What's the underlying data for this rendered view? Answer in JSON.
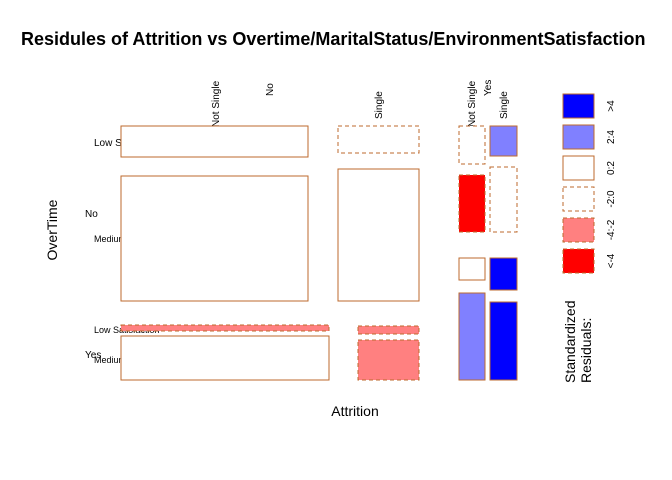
{
  "chart_data": {
    "type": "mosaic",
    "title": "Residules of Attrition vs Overtime/MaritalStatus/EnvironmentSatisfaction",
    "xlabel": "Attrition",
    "ylabel": "OverTime",
    "column_labels": {
      "attrition": [
        "No",
        "Yes"
      ],
      "marital_status": [
        "Not Single",
        "Single",
        "Not Single",
        "Single"
      ]
    },
    "row_labels": {
      "overtime": [
        "No",
        "Yes"
      ],
      "environment_satisfaction": [
        "Low Satisfaction",
        "Medium or High Satisfaction",
        "Low Satisfaction",
        "Medium or High Satisfaction"
      ]
    },
    "legend": {
      "title": "Standardized Residuals:",
      "entries": [
        {
          "label": ">4",
          "fill": "#0000ff",
          "dashed": false
        },
        {
          "label": "2:4",
          "fill": "#8080ff",
          "dashed": false
        },
        {
          "label": "0:2",
          "fill": "#ffffff",
          "dashed": false
        },
        {
          "label": "-2:0",
          "fill": "#ffffff",
          "dashed": true
        },
        {
          "label": "-4:-2",
          "fill": "#ff8080",
          "dashed": true
        },
        {
          "label": "<-4",
          "fill": "#ff0000",
          "dashed": true
        }
      ]
    },
    "cells": [
      {
        "attrition": "No",
        "marital": "Not Single",
        "overtime": "No",
        "env": "Low Satisfaction",
        "residual_class": "0:2"
      },
      {
        "attrition": "No",
        "marital": "Single",
        "overtime": "No",
        "env": "Low Satisfaction",
        "residual_class": "-2:0"
      },
      {
        "attrition": "Yes",
        "marital": "Not Single",
        "overtime": "No",
        "env": "Low Satisfaction",
        "residual_class": "-2:0"
      },
      {
        "attrition": "Yes",
        "marital": "Single",
        "overtime": "No",
        "env": "Low Satisfaction",
        "residual_class": "2:4"
      },
      {
        "attrition": "No",
        "marital": "Not Single",
        "overtime": "No",
        "env": "Medium or High Satisfaction",
        "residual_class": "0:2"
      },
      {
        "attrition": "No",
        "marital": "Single",
        "overtime": "No",
        "env": "Medium or High Satisfaction",
        "residual_class": "0:2"
      },
      {
        "attrition": "Yes",
        "marital": "Not Single",
        "overtime": "No",
        "env": "Medium or High Satisfaction",
        "residual_class": "<-4"
      },
      {
        "attrition": "Yes",
        "marital": "Single",
        "overtime": "No",
        "env": "Medium or High Satisfaction",
        "residual_class": "-2:0"
      },
      {
        "attrition": "Yes",
        "marital": "Not Single",
        "overtime": "Yes",
        "env": "Low Satisfaction",
        "residual_class": "0:2"
      },
      {
        "attrition": "Yes",
        "marital": "Single",
        "overtime": "Yes",
        "env": "Low Satisfaction",
        "residual_class": ">4"
      },
      {
        "attrition": "No",
        "marital": "Not Single",
        "overtime": "Yes",
        "env": "Low Satisfaction",
        "residual_class": "-4:-2"
      },
      {
        "attrition": "No",
        "marital": "Single",
        "overtime": "Yes",
        "env": "Low Satisfaction",
        "residual_class": "-4:-2"
      },
      {
        "attrition": "No",
        "marital": "Not Single",
        "overtime": "Yes",
        "env": "Medium or High Satisfaction",
        "residual_class": "0:2"
      },
      {
        "attrition": "No",
        "marital": "Single",
        "overtime": "Yes",
        "env": "Medium or High Satisfaction",
        "residual_class": "-4:-2"
      },
      {
        "attrition": "Yes",
        "marital": "Not Single",
        "overtime": "Yes",
        "env": "Medium or High Satisfaction",
        "residual_class": "2:4"
      },
      {
        "attrition": "Yes",
        "marital": "Single",
        "overtime": "Yes",
        "env": "Medium or High Satisfaction",
        "residual_class": ">4"
      }
    ]
  }
}
